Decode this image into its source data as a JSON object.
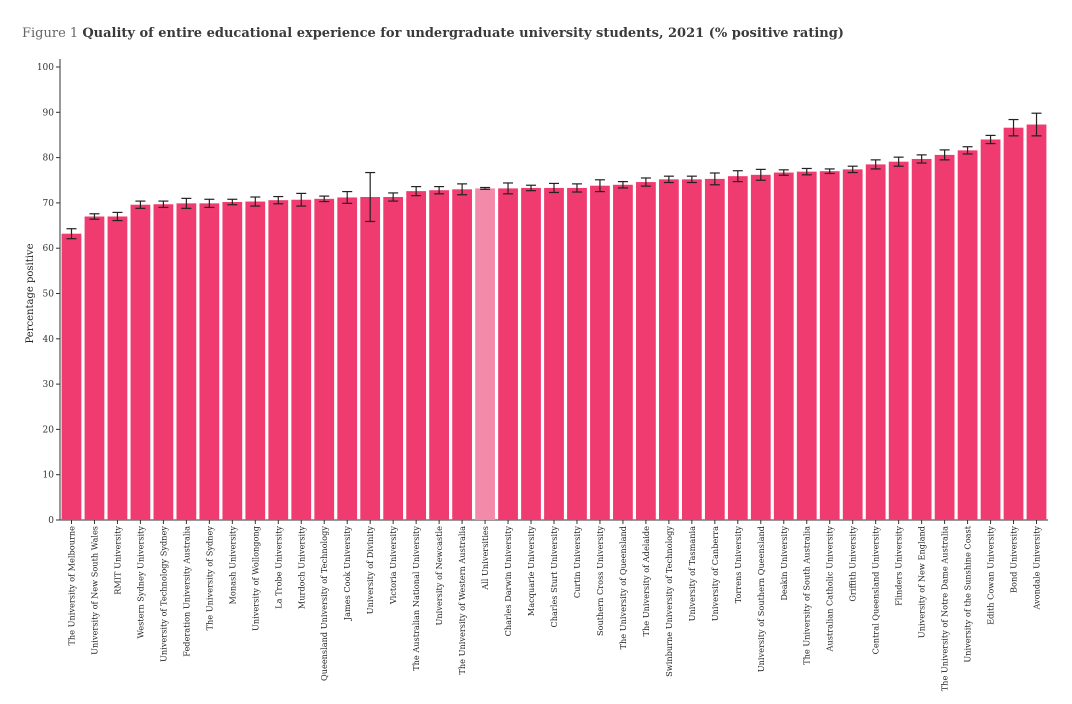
{
  "figure": {
    "prefix": "Figure 1",
    "title": "Quality of entire educational experience for undergraduate university students, 2021 (% positive rating)"
  },
  "chart_data": {
    "type": "bar",
    "title": "Quality of entire educational experience for undergraduate university students, 2021 (% positive rating)",
    "xlabel": "",
    "ylabel": "Percentage positive",
    "ylim": [
      0,
      100
    ],
    "yticks": [
      0,
      10,
      20,
      30,
      40,
      50,
      60,
      70,
      80,
      90,
      100
    ],
    "grid": false,
    "colors": {
      "bar": "#ef3b6f",
      "highlight": "#f48aaa",
      "error": "#222222"
    },
    "highlight_category": "All Universities",
    "categories": [
      "The University of Melbourne",
      "University of New South Wales",
      "RMIT University",
      "Western Sydney University",
      "University of Technology Sydney",
      "Federation University Australia",
      "The University of Sydney",
      "Monash University",
      "University of Wollongong",
      "La Trobe University",
      "Murdoch University",
      "Queensland University of Technology",
      "James Cook University",
      "University of Divinity",
      "Victoria University",
      "The Australian National University",
      "University of Newcastle",
      "The University of Western Australia",
      "All Universities",
      "Charles Darwin University",
      "Macquarie University",
      "Charles Sturt University",
      "Curtin University",
      "Southern Cross University",
      "The University of Queensland",
      "The University of Adelaide",
      "Swinburne University of Technology",
      "University of Tasmania",
      "University of Canberra",
      "Torrens University",
      "University of Southern Queensland",
      "Deakin University",
      "The University of South Australia",
      "Australian Catholic University",
      "Griffith University",
      "Central Queensland University",
      "Flinders University",
      "University of New England",
      "The University of Notre Dame Australia",
      "University of the Sunshine Coast",
      "Edith Cowan University",
      "Bond University",
      "Avondale University"
    ],
    "values": [
      63.2,
      67.0,
      67.0,
      69.6,
      69.7,
      69.9,
      69.9,
      70.2,
      70.3,
      70.6,
      70.7,
      70.9,
      71.2,
      71.3,
      71.3,
      72.6,
      72.8,
      73.0,
      73.2,
      73.2,
      73.3,
      73.3,
      73.3,
      73.8,
      74.0,
      74.6,
      75.2,
      75.2,
      75.3,
      75.9,
      76.2,
      76.7,
      76.9,
      77.0,
      77.4,
      78.5,
      79.1,
      79.7,
      80.6,
      81.6,
      84.0,
      86.6,
      87.3
    ],
    "error_low": [
      62.1,
      66.4,
      66.1,
      68.8,
      69.0,
      68.8,
      69.0,
      69.6,
      69.3,
      69.8,
      69.3,
      70.3,
      69.9,
      65.9,
      70.4,
      71.6,
      72.0,
      71.8,
      73.0,
      72.0,
      72.7,
      72.3,
      72.4,
      72.5,
      73.3,
      73.7,
      74.5,
      74.5,
      74.0,
      74.7,
      75.0,
      76.1,
      76.2,
      76.5,
      76.7,
      77.5,
      78.1,
      78.8,
      79.5,
      80.8,
      83.1,
      84.8,
      84.8
    ],
    "error_high": [
      64.3,
      67.6,
      67.9,
      70.4,
      70.4,
      71.0,
      70.8,
      70.8,
      71.3,
      71.4,
      72.1,
      71.5,
      72.5,
      76.7,
      72.2,
      73.6,
      73.6,
      74.2,
      73.4,
      74.4,
      73.9,
      74.3,
      74.2,
      75.1,
      74.7,
      75.5,
      75.9,
      75.9,
      76.6,
      77.1,
      77.4,
      77.3,
      77.6,
      77.5,
      78.1,
      79.5,
      80.1,
      80.6,
      81.7,
      82.4,
      84.9,
      88.4,
      89.8
    ]
  }
}
